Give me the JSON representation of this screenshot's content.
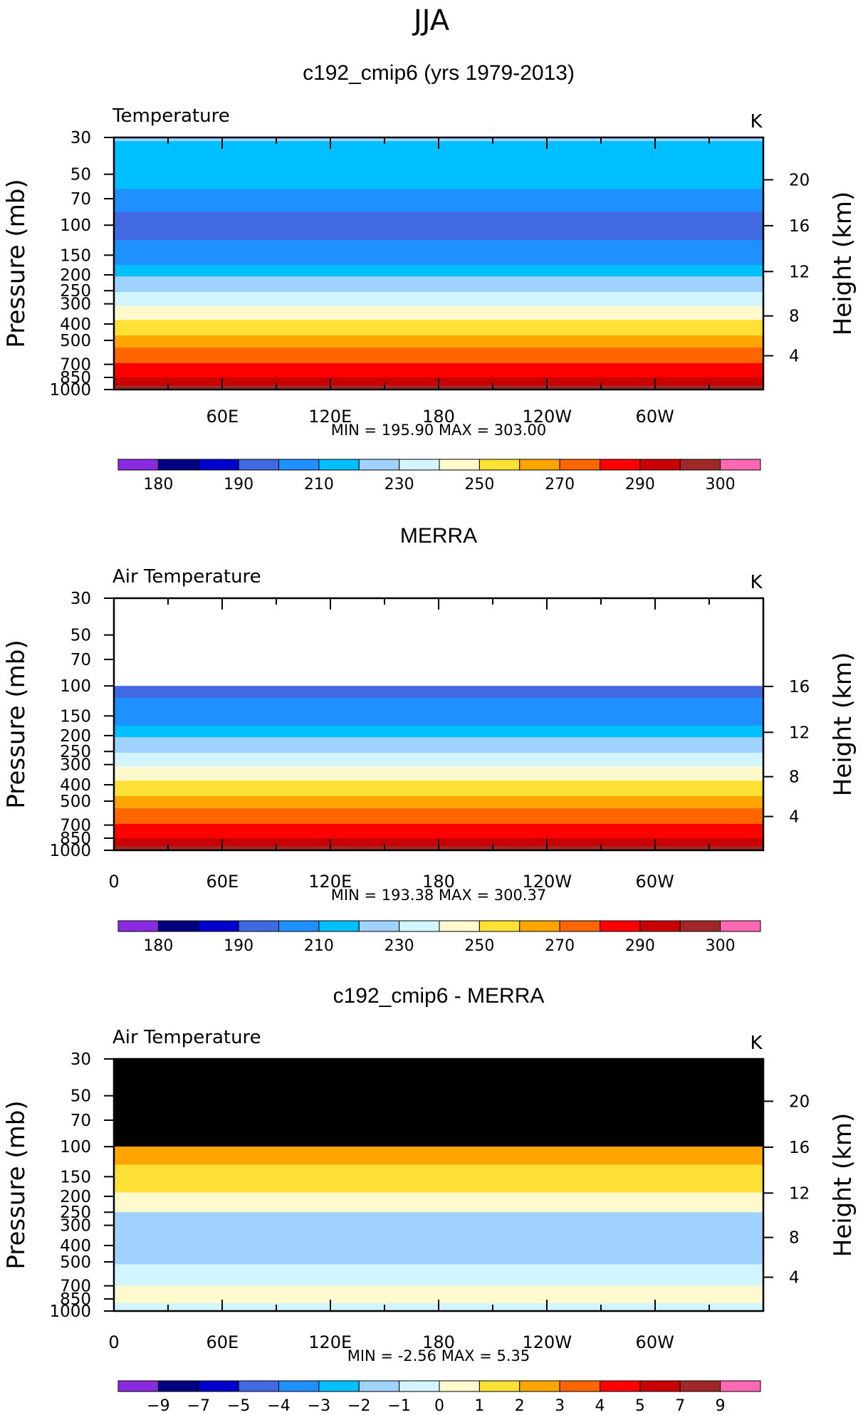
{
  "figure_title": "JJA",
  "colors": {
    "temp_palette": [
      "#8a2be2",
      "#000080",
      "#0000cd",
      "#4169e1",
      "#1e90ff",
      "#00bfff",
      "#a0d2ff",
      "#d2f5ff",
      "#fffacd",
      "#ffe135",
      "#ffa500",
      "#ff6600",
      "#ff0000",
      "#c80000",
      "#a02828",
      "#ff69b4"
    ],
    "diff_palette": [
      "#8a2be2",
      "#000080",
      "#0000cd",
      "#4169e1",
      "#1e90ff",
      "#00bfff",
      "#a0d2ff",
      "#d2f5ff",
      "#fffacd",
      "#ffe135",
      "#ffa500",
      "#ff6600",
      "#ff0000",
      "#c80000",
      "#a02828",
      "#ff69b4"
    ],
    "masked": "#000000"
  },
  "chart_data": [
    {
      "type": "heatmap",
      "title": "c192_cmip6 (yrs 1979-2013)",
      "left_label": "Temperature",
      "units": "K",
      "ylabel": "Pressure (mb)",
      "y2label": "Height (km)",
      "y_ticks": [
        "30",
        "50",
        "70",
        "100",
        "150",
        "200",
        "250",
        "300",
        "400",
        "500",
        "700",
        "850",
        "1000"
      ],
      "y2_ticks": [
        "20",
        "16",
        "12",
        "8",
        "4"
      ],
      "x_ticks": [
        "60E",
        "120E",
        "180",
        "120W",
        "60W"
      ],
      "stats": "MIN = 195.90   MAX = 303.00",
      "colorbar_labels": [
        "180",
        "190",
        "210",
        "230",
        "250",
        "270",
        "290",
        "300"
      ],
      "bands_by_pressure": [
        {
          "from": 30,
          "to": 32,
          "color_index": 6
        },
        {
          "from": 32,
          "to": 62,
          "color_index": 5
        },
        {
          "from": 62,
          "to": 85,
          "color_index": 4
        },
        {
          "from": 85,
          "to": 125,
          "color_index": 3
        },
        {
          "from": 125,
          "to": 175,
          "color_index": 4
        },
        {
          "from": 175,
          "to": 205,
          "color_index": 5
        },
        {
          "from": 205,
          "to": 255,
          "color_index": 6
        },
        {
          "from": 255,
          "to": 310,
          "color_index": 7
        },
        {
          "from": 310,
          "to": 380,
          "color_index": 8
        },
        {
          "from": 380,
          "to": 470,
          "color_index": 9
        },
        {
          "from": 470,
          "to": 560,
          "color_index": 10
        },
        {
          "from": 560,
          "to": 690,
          "color_index": 11
        },
        {
          "from": 690,
          "to": 850,
          "color_index": 12
        },
        {
          "from": 850,
          "to": 950,
          "color_index": 13
        },
        {
          "from": 950,
          "to": 1000,
          "color_index": 14
        }
      ],
      "masked_above_mb": null
    },
    {
      "type": "heatmap",
      "title": "MERRA",
      "left_label": "Air Temperature",
      "units": "K",
      "ylabel": "Pressure (mb)",
      "y2label": "Height (km)",
      "y_ticks": [
        "30",
        "50",
        "70",
        "100",
        "150",
        "200",
        "250",
        "300",
        "400",
        "500",
        "700",
        "850",
        "1000"
      ],
      "y2_ticks": [
        "16",
        "12",
        "8",
        "4"
      ],
      "x_ticks": [
        "0",
        "60E",
        "120E",
        "180",
        "120W",
        "60W"
      ],
      "stats": "MIN = 193.38   MAX = 300.37",
      "colorbar_labels": [
        "180",
        "190",
        "210",
        "230",
        "250",
        "270",
        "290",
        "300"
      ],
      "bands_by_pressure": [
        {
          "from": 100,
          "to": 120,
          "color_index": 3
        },
        {
          "from": 120,
          "to": 175,
          "color_index": 4
        },
        {
          "from": 175,
          "to": 205,
          "color_index": 5
        },
        {
          "from": 205,
          "to": 255,
          "color_index": 6
        },
        {
          "from": 255,
          "to": 310,
          "color_index": 7
        },
        {
          "from": 310,
          "to": 380,
          "color_index": 8
        },
        {
          "from": 380,
          "to": 470,
          "color_index": 9
        },
        {
          "from": 470,
          "to": 560,
          "color_index": 10
        },
        {
          "from": 560,
          "to": 690,
          "color_index": 11
        },
        {
          "from": 690,
          "to": 850,
          "color_index": 12
        },
        {
          "from": 850,
          "to": 950,
          "color_index": 13
        },
        {
          "from": 950,
          "to": 1000,
          "color_index": 14
        }
      ],
      "masked_above_mb": null
    },
    {
      "type": "heatmap",
      "title": "c192_cmip6 - MERRA",
      "left_label": "Air Temperature",
      "units": "K",
      "ylabel": "Pressure (mb)",
      "y2label": "Height (km)",
      "y_ticks": [
        "30",
        "50",
        "70",
        "100",
        "150",
        "200",
        "250",
        "300",
        "400",
        "500",
        "700",
        "850",
        "1000"
      ],
      "y2_ticks": [
        "20",
        "16",
        "12",
        "8",
        "4"
      ],
      "x_ticks": [
        "0",
        "60E",
        "120E",
        "180",
        "120W",
        "60W"
      ],
      "stats": "MIN =    -2.56    MAX =     5.35",
      "colorbar_labels": [
        "-9",
        "-7",
        "-5",
        "-4",
        "-3",
        "-2",
        "-1",
        "0",
        "1",
        "2",
        "3",
        "4",
        "5",
        "7",
        "9"
      ],
      "bands_by_pressure": [
        {
          "from": 100,
          "to": 130,
          "color_index": 10
        },
        {
          "from": 130,
          "to": 190,
          "color_index": 9
        },
        {
          "from": 190,
          "to": 250,
          "color_index": 8
        },
        {
          "from": 250,
          "to": 320,
          "color_index": 6
        },
        {
          "from": 320,
          "to": 520,
          "color_index": 6
        },
        {
          "from": 520,
          "to": 700,
          "color_index": 7
        },
        {
          "from": 700,
          "to": 900,
          "color_index": 8
        },
        {
          "from": 900,
          "to": 1000,
          "color_index": 7
        }
      ],
      "masked_above_mb": 100
    }
  ]
}
